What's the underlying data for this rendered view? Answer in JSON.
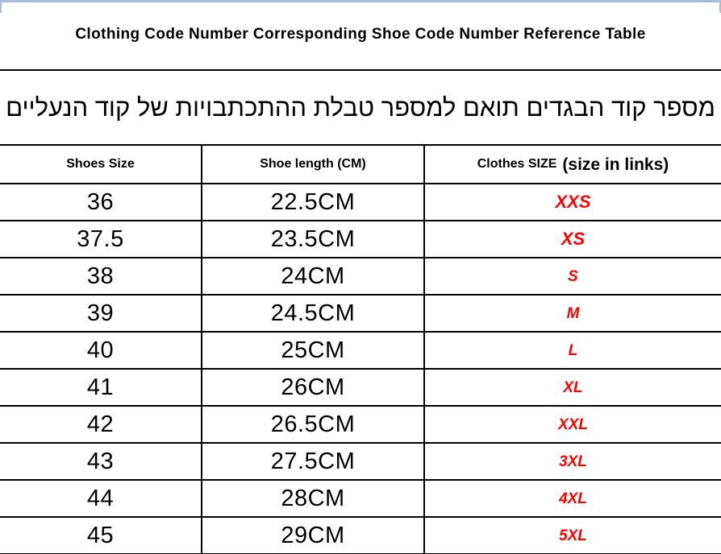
{
  "page": {
    "title_en": "Clothing Code Number Corresponding Shoe Code Number Reference Table",
    "title_he": "מספר קוד הבגדים תואם למספר טבלת ההתכתבויות של קוד הנעליים"
  },
  "colors": {
    "top_accent_border": "#a8bdd6",
    "table_line": "#000000",
    "clothes_size_text": "#ff0000"
  },
  "table": {
    "headers": {
      "shoes_size": "Shoes Size",
      "shoe_length": "Shoe length (CM)",
      "clothes_size": "Clothes SIZE",
      "clothes_size_suffix": "(size in links)"
    },
    "rows": [
      {
        "shoe_size": "36",
        "length": "22.5CM",
        "clothes": "XXS"
      },
      {
        "shoe_size": "37.5",
        "length": "23.5CM",
        "clothes": "XS"
      },
      {
        "shoe_size": "38",
        "length": "24CM",
        "clothes": "S"
      },
      {
        "shoe_size": "39",
        "length": "24.5CM",
        "clothes": "M"
      },
      {
        "shoe_size": "40",
        "length": "25CM",
        "clothes": "L"
      },
      {
        "shoe_size": "41",
        "length": "26CM",
        "clothes": "XL"
      },
      {
        "shoe_size": "42",
        "length": "26.5CM",
        "clothes": "XXL"
      },
      {
        "shoe_size": "43",
        "length": "27.5CM",
        "clothes": "3XL"
      },
      {
        "shoe_size": "44",
        "length": "28CM",
        "clothes": "4XL"
      },
      {
        "shoe_size": "45",
        "length": "29CM",
        "clothes": "5XL"
      }
    ]
  }
}
